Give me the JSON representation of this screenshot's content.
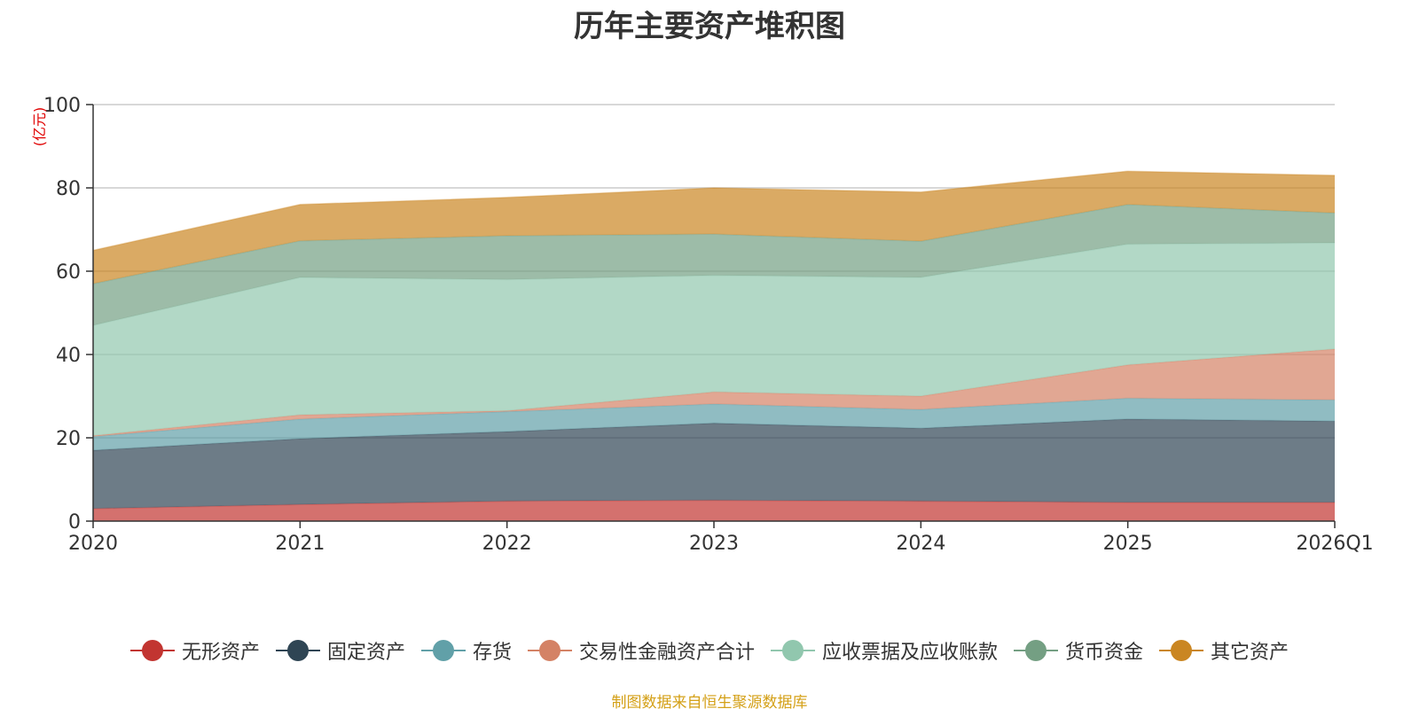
{
  "chart_data": {
    "type": "area",
    "stacked": true,
    "title": "历年主要资产堆积图",
    "ylabel": "(亿元)",
    "xlabel": "",
    "categories": [
      "2020",
      "2021",
      "2022",
      "2023",
      "2024",
      "2025",
      "2026Q1"
    ],
    "ylim": [
      0,
      100
    ],
    "yticks": [
      0,
      20,
      40,
      60,
      80,
      100
    ],
    "grid": true,
    "legend_position": "bottom",
    "series": [
      {
        "name": "无形资产",
        "color": "#c23531",
        "values": [
          3.0,
          4.0,
          4.8,
          5.0,
          4.8,
          4.5,
          4.5
        ]
      },
      {
        "name": "固定资产",
        "color": "#2f4554",
        "values": [
          14.0,
          15.8,
          16.7,
          18.5,
          17.5,
          20.0,
          19.5
        ]
      },
      {
        "name": "存货",
        "color": "#61a0a8",
        "values": [
          3.3,
          4.7,
          4.8,
          4.6,
          4.5,
          5.0,
          5.1
        ]
      },
      {
        "name": "交易性金融资产合计",
        "color": "#d48265",
        "values": [
          0.2,
          1.0,
          0.2,
          2.9,
          3.2,
          8.0,
          12.2
        ]
      },
      {
        "name": "应收票据及应收账款",
        "color": "#91c7ae",
        "values": [
          26.5,
          33.0,
          31.5,
          28.0,
          28.5,
          29.0,
          25.5
        ]
      },
      {
        "name": "货币资金",
        "color": "#749f83",
        "values": [
          10.0,
          8.8,
          10.5,
          9.9,
          8.7,
          9.5,
          7.2
        ]
      },
      {
        "name": "其它资产",
        "color": "#ca8622",
        "values": [
          8.0,
          8.7,
          9.2,
          11.1,
          11.8,
          8.0,
          9.0
        ]
      }
    ]
  },
  "source_note": "制图数据来自恒生聚源数据库"
}
